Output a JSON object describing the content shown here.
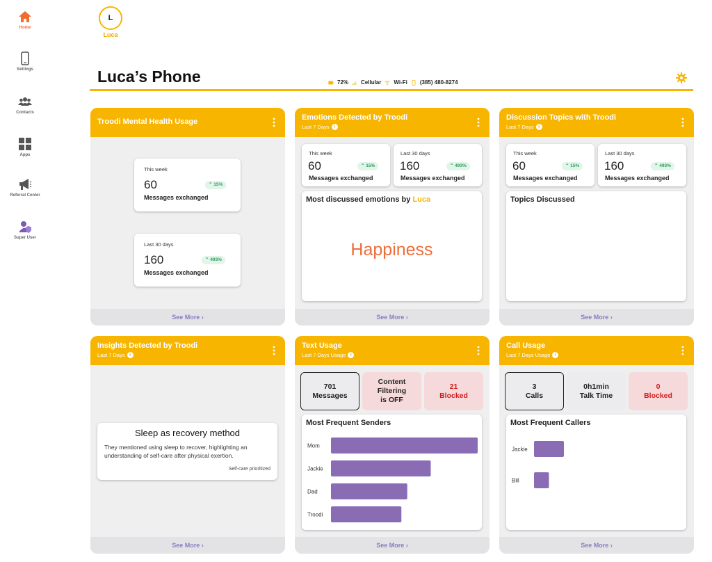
{
  "sidebar": {
    "items": [
      {
        "label": "Home",
        "icon": "home-icon",
        "active": true
      },
      {
        "label": "Settings",
        "icon": "phone-icon",
        "active": false
      },
      {
        "label": "Contacts",
        "icon": "contacts-icon",
        "active": false
      },
      {
        "label": "Apps",
        "icon": "apps-grid-icon",
        "active": false
      },
      {
        "label": "Referral Center",
        "icon": "megaphone-icon",
        "active": false
      },
      {
        "label": "Super User",
        "icon": "super-user-icon",
        "active": false
      }
    ]
  },
  "profile": {
    "initial": "L",
    "name": "Luca"
  },
  "header": {
    "title": "Luca’s Phone",
    "battery": "72%",
    "network": "Cellular",
    "wifi": "Wi-Fi",
    "phone_number": "(385) 480-8274"
  },
  "colors": {
    "accent": "#f7b500",
    "emotion": "#ee6e3c",
    "bar": "#8a6cb5",
    "blocked": "#d21b1b",
    "badge_green": "#2f9a5e",
    "see_more": "#8a7cc0"
  },
  "cards": {
    "mental_health": {
      "title": "Troodi Mental Health Usage",
      "week": {
        "period": "This week",
        "value": "60",
        "change": "15%",
        "label": "Messages exchanged"
      },
      "month": {
        "period": "Last 30 days",
        "value": "160",
        "change": "493%",
        "label": "Messages exchanged"
      },
      "see_more": "See More"
    },
    "emotions": {
      "title": "Emotions Detected by Troodi",
      "subtitle": "Last 7 Days",
      "week": {
        "period": "This week",
        "value": "60",
        "change": "15%",
        "label": "Messages exchanged"
      },
      "month": {
        "period": "Last 30 days",
        "value": "160",
        "change": "493%",
        "label": "Messages exchanged"
      },
      "panel_title": "Most discussed emotions by",
      "panel_name": "Luca",
      "top_emotion": "Happiness",
      "see_more": "See More"
    },
    "topics": {
      "title": "Discussion Topics with Troodi",
      "subtitle": "Last 7 Days",
      "week": {
        "period": "This week",
        "value": "60",
        "change": "15%",
        "label": "Messages exchanged"
      },
      "month": {
        "period": "Last 30 days",
        "value": "160",
        "change": "493%",
        "label": "Messages exchanged"
      },
      "panel_title": "Topics Discussed",
      "see_more": "See More"
    },
    "insights": {
      "title": "Insights Detected by Troodi",
      "subtitle": "Last 7 Days",
      "insight_title": "Sleep as recovery method",
      "insight_body": "They mentioned using sleep to recover, highlighting an understanding of self-care after physical exertion.",
      "insight_tag": "Self-care prioritized",
      "see_more": "See More"
    },
    "text_usage": {
      "title": "Text Usage",
      "subtitle": "Last 7 Days Usage",
      "tiles": {
        "messages_count": "701",
        "messages_label": "Messages",
        "filter_line1": "Content",
        "filter_line2": "Filtering",
        "filter_line3": "is OFF",
        "blocked_count": "21",
        "blocked_label": "Blocked"
      },
      "panel_title": "Most Frequent Senders",
      "see_more": "See More"
    },
    "call_usage": {
      "title": "Call Usage",
      "subtitle": "Last 7 Days Usage",
      "tiles": {
        "calls_count": "3",
        "calls_label": "Calls",
        "talk_time": "0h1min",
        "talk_label": "Talk Time",
        "blocked_count": "0",
        "blocked_label": "Blocked"
      },
      "panel_title": "Most Frequent Callers",
      "see_more": "See More"
    }
  },
  "chart_data": [
    {
      "type": "bar",
      "orientation": "horizontal",
      "title": "Most Frequent Senders",
      "categories": [
        "Mom",
        "Jackie",
        "Dad",
        "Troodi"
      ],
      "values": [
        100,
        68,
        52,
        48
      ],
      "xlim": [
        0,
        100
      ]
    },
    {
      "type": "bar",
      "orientation": "horizontal",
      "title": "Most Frequent Callers",
      "categories": [
        "Jackie",
        "Bill"
      ],
      "values": [
        2,
        1
      ],
      "xlim": [
        0,
        10
      ]
    }
  ]
}
